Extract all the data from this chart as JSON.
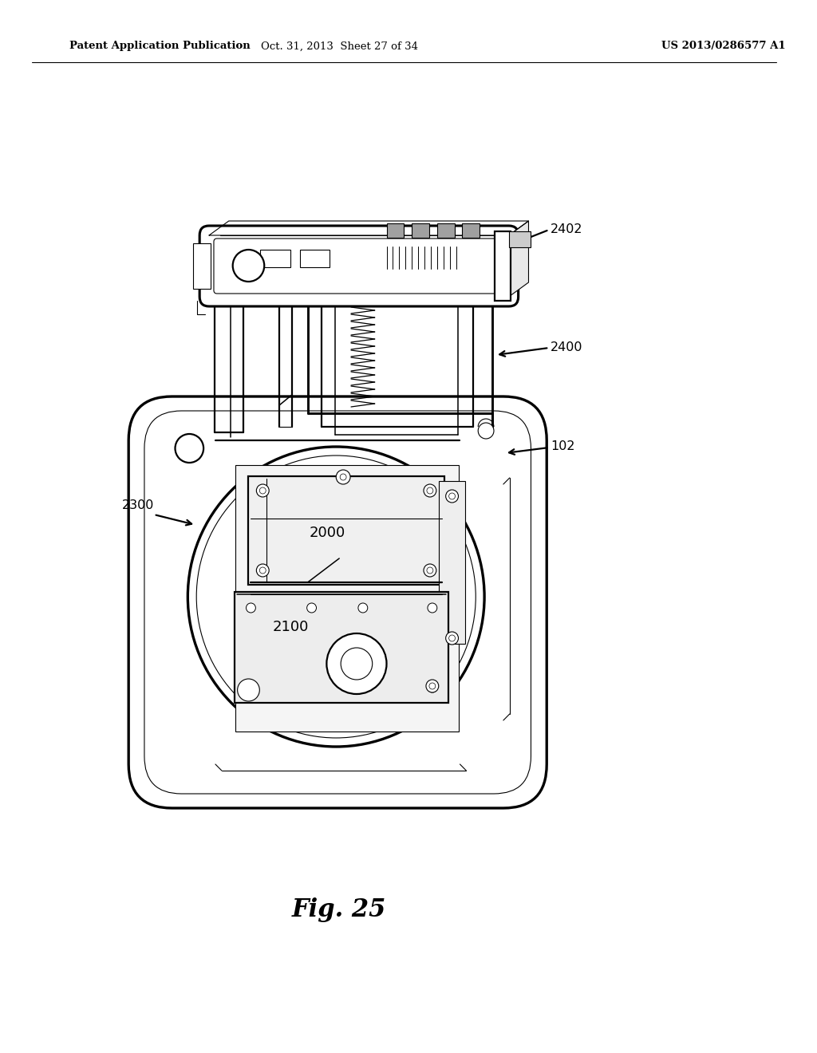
{
  "bg_color": "#ffffff",
  "header_left": "Patent Application Publication",
  "header_mid": "Oct. 31, 2013  Sheet 27 of 34",
  "header_right": "US 2013/0286577 A1",
  "fig_label": "Fig. 25",
  "line_color": "#000000",
  "lw_main": 1.6,
  "lw_thin": 0.8,
  "lw_medium": 1.1
}
